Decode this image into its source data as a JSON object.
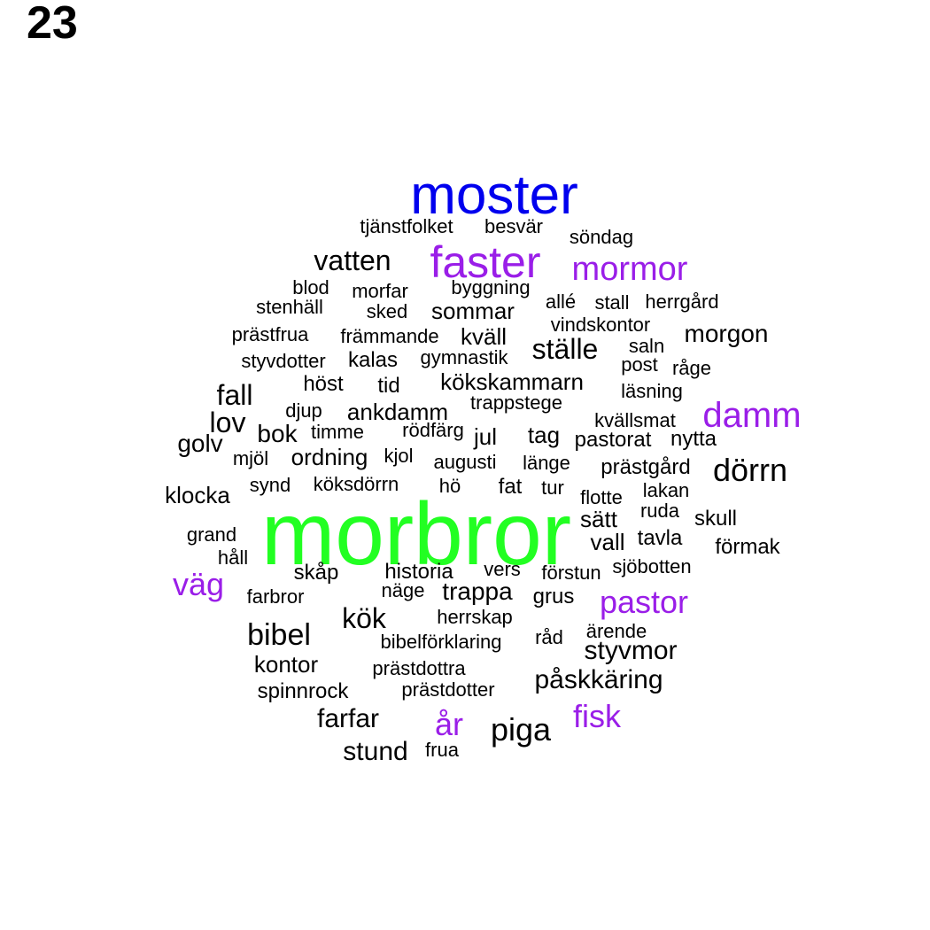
{
  "label": "23",
  "colors": {
    "green": "#22ff22",
    "blue": "#0000ee",
    "purple": "#9a1ee8",
    "black": "#000000"
  },
  "words": [
    {
      "text": "morbror",
      "color": "green"
    },
    {
      "text": "moster",
      "color": "blue"
    },
    {
      "text": "faster",
      "color": "purple"
    },
    {
      "text": "mormor",
      "color": "purple"
    },
    {
      "text": "damm",
      "color": "purple"
    },
    {
      "text": "väg",
      "color": "purple"
    },
    {
      "text": "pastor",
      "color": "purple"
    },
    {
      "text": "fisk",
      "color": "purple"
    },
    {
      "text": "år",
      "color": "purple"
    },
    {
      "text": "tjänstfolket",
      "color": "black"
    },
    {
      "text": "besvär",
      "color": "black"
    },
    {
      "text": "söndag",
      "color": "black"
    },
    {
      "text": "vatten",
      "color": "black"
    },
    {
      "text": "blod",
      "color": "black"
    },
    {
      "text": "morfar",
      "color": "black"
    },
    {
      "text": "byggning",
      "color": "black"
    },
    {
      "text": "allé",
      "color": "black"
    },
    {
      "text": "stall",
      "color": "black"
    },
    {
      "text": "herrgård",
      "color": "black"
    },
    {
      "text": "stenhäll",
      "color": "black"
    },
    {
      "text": "sked",
      "color": "black"
    },
    {
      "text": "sommar",
      "color": "black"
    },
    {
      "text": "vindskontor",
      "color": "black"
    },
    {
      "text": "prästfrua",
      "color": "black"
    },
    {
      "text": "främmande",
      "color": "black"
    },
    {
      "text": "kväll",
      "color": "black"
    },
    {
      "text": "ställe",
      "color": "black"
    },
    {
      "text": "morgon",
      "color": "black"
    },
    {
      "text": "saln",
      "color": "black"
    },
    {
      "text": "styvdotter",
      "color": "black"
    },
    {
      "text": "kalas",
      "color": "black"
    },
    {
      "text": "gymnastik",
      "color": "black"
    },
    {
      "text": "post",
      "color": "black"
    },
    {
      "text": "råge",
      "color": "black"
    },
    {
      "text": "höst",
      "color": "black"
    },
    {
      "text": "tid",
      "color": "black"
    },
    {
      "text": "kökskammarn",
      "color": "black"
    },
    {
      "text": "läsning",
      "color": "black"
    },
    {
      "text": "fall",
      "color": "black"
    },
    {
      "text": "djup",
      "color": "black"
    },
    {
      "text": "ankdamm",
      "color": "black"
    },
    {
      "text": "trappstege",
      "color": "black"
    },
    {
      "text": "lov",
      "color": "black"
    },
    {
      "text": "kvällsmat",
      "color": "black"
    },
    {
      "text": "bok",
      "color": "black"
    },
    {
      "text": "timme",
      "color": "black"
    },
    {
      "text": "rödfärg",
      "color": "black"
    },
    {
      "text": "jul",
      "color": "black"
    },
    {
      "text": "tag",
      "color": "black"
    },
    {
      "text": "pastorat",
      "color": "black"
    },
    {
      "text": "nytta",
      "color": "black"
    },
    {
      "text": "golv",
      "color": "black"
    },
    {
      "text": "mjöl",
      "color": "black"
    },
    {
      "text": "ordning",
      "color": "black"
    },
    {
      "text": "kjol",
      "color": "black"
    },
    {
      "text": "augusti",
      "color": "black"
    },
    {
      "text": "länge",
      "color": "black"
    },
    {
      "text": "prästgård",
      "color": "black"
    },
    {
      "text": "dörrn",
      "color": "black"
    },
    {
      "text": "klocka",
      "color": "black"
    },
    {
      "text": "synd",
      "color": "black"
    },
    {
      "text": "köksdörrn",
      "color": "black"
    },
    {
      "text": "hö",
      "color": "black"
    },
    {
      "text": "fat",
      "color": "black"
    },
    {
      "text": "tur",
      "color": "black"
    },
    {
      "text": "flotte",
      "color": "black"
    },
    {
      "text": "lakan",
      "color": "black"
    },
    {
      "text": "sätt",
      "color": "black"
    },
    {
      "text": "ruda",
      "color": "black"
    },
    {
      "text": "skull",
      "color": "black"
    },
    {
      "text": "grand",
      "color": "black"
    },
    {
      "text": "vall",
      "color": "black"
    },
    {
      "text": "tavla",
      "color": "black"
    },
    {
      "text": "förmak",
      "color": "black"
    },
    {
      "text": "håll",
      "color": "black"
    },
    {
      "text": "skåp",
      "color": "black"
    },
    {
      "text": "historia",
      "color": "black"
    },
    {
      "text": "vers",
      "color": "black"
    },
    {
      "text": "förstun",
      "color": "black"
    },
    {
      "text": "sjöbotten",
      "color": "black"
    },
    {
      "text": "farbror",
      "color": "black"
    },
    {
      "text": "näge",
      "color": "black"
    },
    {
      "text": "trappa",
      "color": "black"
    },
    {
      "text": "grus",
      "color": "black"
    },
    {
      "text": "kök",
      "color": "black"
    },
    {
      "text": "herrskap",
      "color": "black"
    },
    {
      "text": "bibel",
      "color": "black"
    },
    {
      "text": "bibelförklaring",
      "color": "black"
    },
    {
      "text": "råd",
      "color": "black"
    },
    {
      "text": "ärende",
      "color": "black"
    },
    {
      "text": "styvmor",
      "color": "black"
    },
    {
      "text": "kontor",
      "color": "black"
    },
    {
      "text": "prästdottra",
      "color": "black"
    },
    {
      "text": "spinnrock",
      "color": "black"
    },
    {
      "text": "prästdotter",
      "color": "black"
    },
    {
      "text": "påskkäring",
      "color": "black"
    },
    {
      "text": "farfar",
      "color": "black"
    },
    {
      "text": "piga",
      "color": "black"
    },
    {
      "text": "stund",
      "color": "black"
    },
    {
      "text": "frua",
      "color": "black"
    }
  ]
}
